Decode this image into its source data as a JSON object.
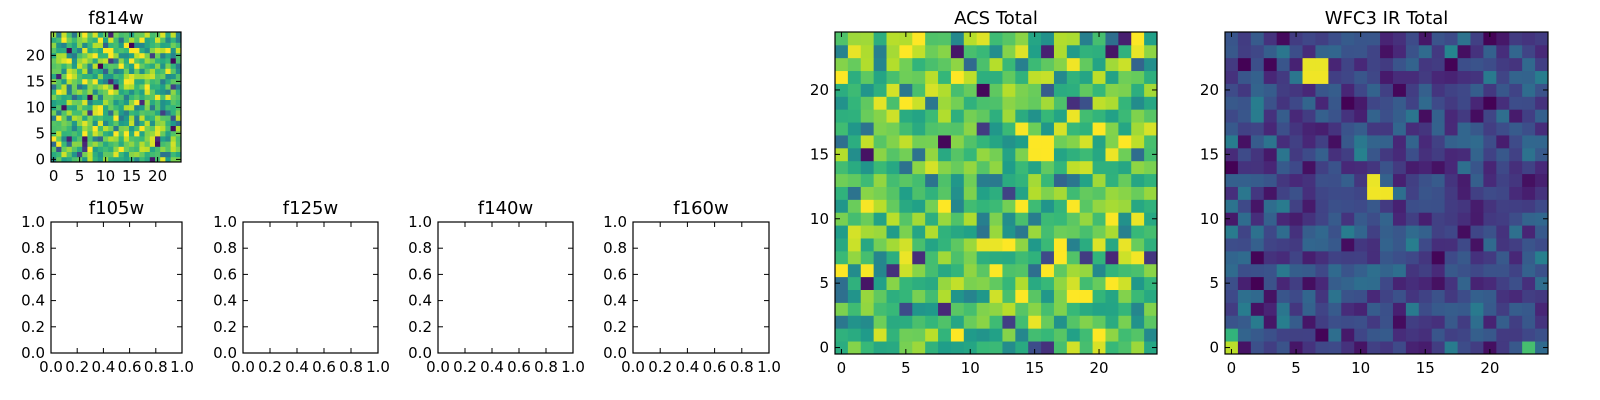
{
  "chart_data": [
    {
      "id": "f814w",
      "type": "heatmap",
      "title": "f814w",
      "xlim": [
        -0.5,
        24.5
      ],
      "ylim": [
        -0.5,
        24.5
      ],
      "xticks": [
        0,
        5,
        10,
        15,
        20
      ],
      "xticklabels": [
        "0",
        "5",
        "10",
        "15",
        "20"
      ],
      "yticks": [
        0,
        5,
        10,
        15,
        20
      ],
      "yticklabels": [
        "0",
        "5",
        "10",
        "15",
        "20"
      ],
      "grid_size": [
        25,
        25
      ],
      "colormap": "viridis",
      "value_range": [
        0,
        1
      ],
      "value_mean": 0.7,
      "value_spread": 0.22,
      "seed": 11,
      "hotspots": []
    },
    {
      "id": "f105w",
      "type": "heatmap",
      "title": "f105w",
      "empty": true,
      "xlim": [
        0,
        1
      ],
      "ylim": [
        0,
        1
      ],
      "xticks": [
        0,
        0.2,
        0.4,
        0.6,
        0.8,
        1.0
      ],
      "xticklabels": [
        "0.0",
        "0.2",
        "0.4",
        "0.6",
        "0.8",
        "1.0"
      ],
      "yticks": [
        0,
        0.2,
        0.4,
        0.6,
        0.8,
        1.0
      ],
      "yticklabels": [
        "0.0",
        "0.2",
        "0.4",
        "0.6",
        "0.8",
        "1.0"
      ]
    },
    {
      "id": "f125w",
      "type": "heatmap",
      "title": "f125w",
      "empty": true,
      "xlim": [
        0,
        1
      ],
      "ylim": [
        0,
        1
      ],
      "xticks": [
        0,
        0.2,
        0.4,
        0.6,
        0.8,
        1.0
      ],
      "xticklabels": [
        "0.0",
        "0.2",
        "0.4",
        "0.6",
        "0.8",
        "1.0"
      ],
      "yticks": [
        0,
        0.2,
        0.4,
        0.6,
        0.8,
        1.0
      ],
      "yticklabels": [
        "0.0",
        "0.2",
        "0.4",
        "0.6",
        "0.8",
        "1.0"
      ]
    },
    {
      "id": "f140w",
      "type": "heatmap",
      "title": "f140w",
      "empty": true,
      "xlim": [
        0,
        1
      ],
      "ylim": [
        0,
        1
      ],
      "xticks": [
        0,
        0.2,
        0.4,
        0.6,
        0.8,
        1.0
      ],
      "xticklabels": [
        "0.0",
        "0.2",
        "0.4",
        "0.6",
        "0.8",
        "1.0"
      ],
      "yticks": [
        0,
        0.2,
        0.4,
        0.6,
        0.8,
        1.0
      ],
      "yticklabels": [
        "0.0",
        "0.2",
        "0.4",
        "0.6",
        "0.8",
        "1.0"
      ]
    },
    {
      "id": "f160w",
      "type": "heatmap",
      "title": "f160w",
      "empty": true,
      "xlim": [
        0,
        1
      ],
      "ylim": [
        0,
        1
      ],
      "xticks": [
        0,
        0.2,
        0.4,
        0.6,
        0.8,
        1.0
      ],
      "xticklabels": [
        "0.0",
        "0.2",
        "0.4",
        "0.6",
        "0.8",
        "1.0"
      ],
      "yticks": [
        0,
        0.2,
        0.4,
        0.6,
        0.8,
        1.0
      ],
      "yticklabels": [
        "0.0",
        "0.2",
        "0.4",
        "0.6",
        "0.8",
        "1.0"
      ]
    },
    {
      "id": "acs_total",
      "type": "heatmap",
      "title": "ACS Total",
      "xlim": [
        -0.5,
        24.5
      ],
      "ylim": [
        -0.5,
        24.5
      ],
      "xticks": [
        0,
        5,
        10,
        15,
        20
      ],
      "xticklabels": [
        "0",
        "5",
        "10",
        "15",
        "20"
      ],
      "yticks": [
        0,
        5,
        10,
        15,
        20
      ],
      "yticklabels": [
        "0",
        "5",
        "10",
        "15",
        "20"
      ],
      "grid_size": [
        25,
        25
      ],
      "colormap": "viridis",
      "value_range": [
        0,
        1
      ],
      "value_mean": 0.72,
      "value_spread": 0.2,
      "seed": 23,
      "hotspots": [
        {
          "col": 11,
          "row": 8,
          "value": 0.97
        },
        {
          "col": 12,
          "row": 8,
          "value": 0.97
        },
        {
          "col": 8,
          "row": 16,
          "value": 0.02
        },
        {
          "col": 2,
          "row": 15,
          "value": 0.05
        }
      ]
    },
    {
      "id": "wfc3_ir_total",
      "type": "heatmap",
      "title": "WFC3 IR Total",
      "xlim": [
        -0.5,
        24.5
      ],
      "ylim": [
        -0.5,
        24.5
      ],
      "xticks": [
        0,
        5,
        10,
        15,
        20
      ],
      "xticklabels": [
        "0",
        "5",
        "10",
        "15",
        "20"
      ],
      "yticks": [
        0,
        5,
        10,
        15,
        20
      ],
      "yticklabels": [
        "0",
        "5",
        "10",
        "15",
        "20"
      ],
      "grid_size": [
        25,
        25
      ],
      "colormap": "viridis",
      "value_range": [
        0,
        1
      ],
      "value_mean": 0.22,
      "value_spread": 0.12,
      "seed": 37,
      "hotspots": [
        {
          "col": 6,
          "row": 21,
          "value": 0.98
        },
        {
          "col": 7,
          "row": 21,
          "value": 0.98
        },
        {
          "col": 6,
          "row": 22,
          "value": 0.97
        },
        {
          "col": 7,
          "row": 22,
          "value": 0.97
        },
        {
          "col": 11,
          "row": 12,
          "value": 0.98
        },
        {
          "col": 12,
          "row": 12,
          "value": 0.98
        },
        {
          "col": 11,
          "row": 13,
          "value": 0.97
        },
        {
          "col": 0,
          "row": 0,
          "value": 0.9
        },
        {
          "col": 0,
          "row": 1,
          "value": 0.65
        },
        {
          "col": 23,
          "row": 0,
          "value": 0.7
        }
      ]
    }
  ]
}
